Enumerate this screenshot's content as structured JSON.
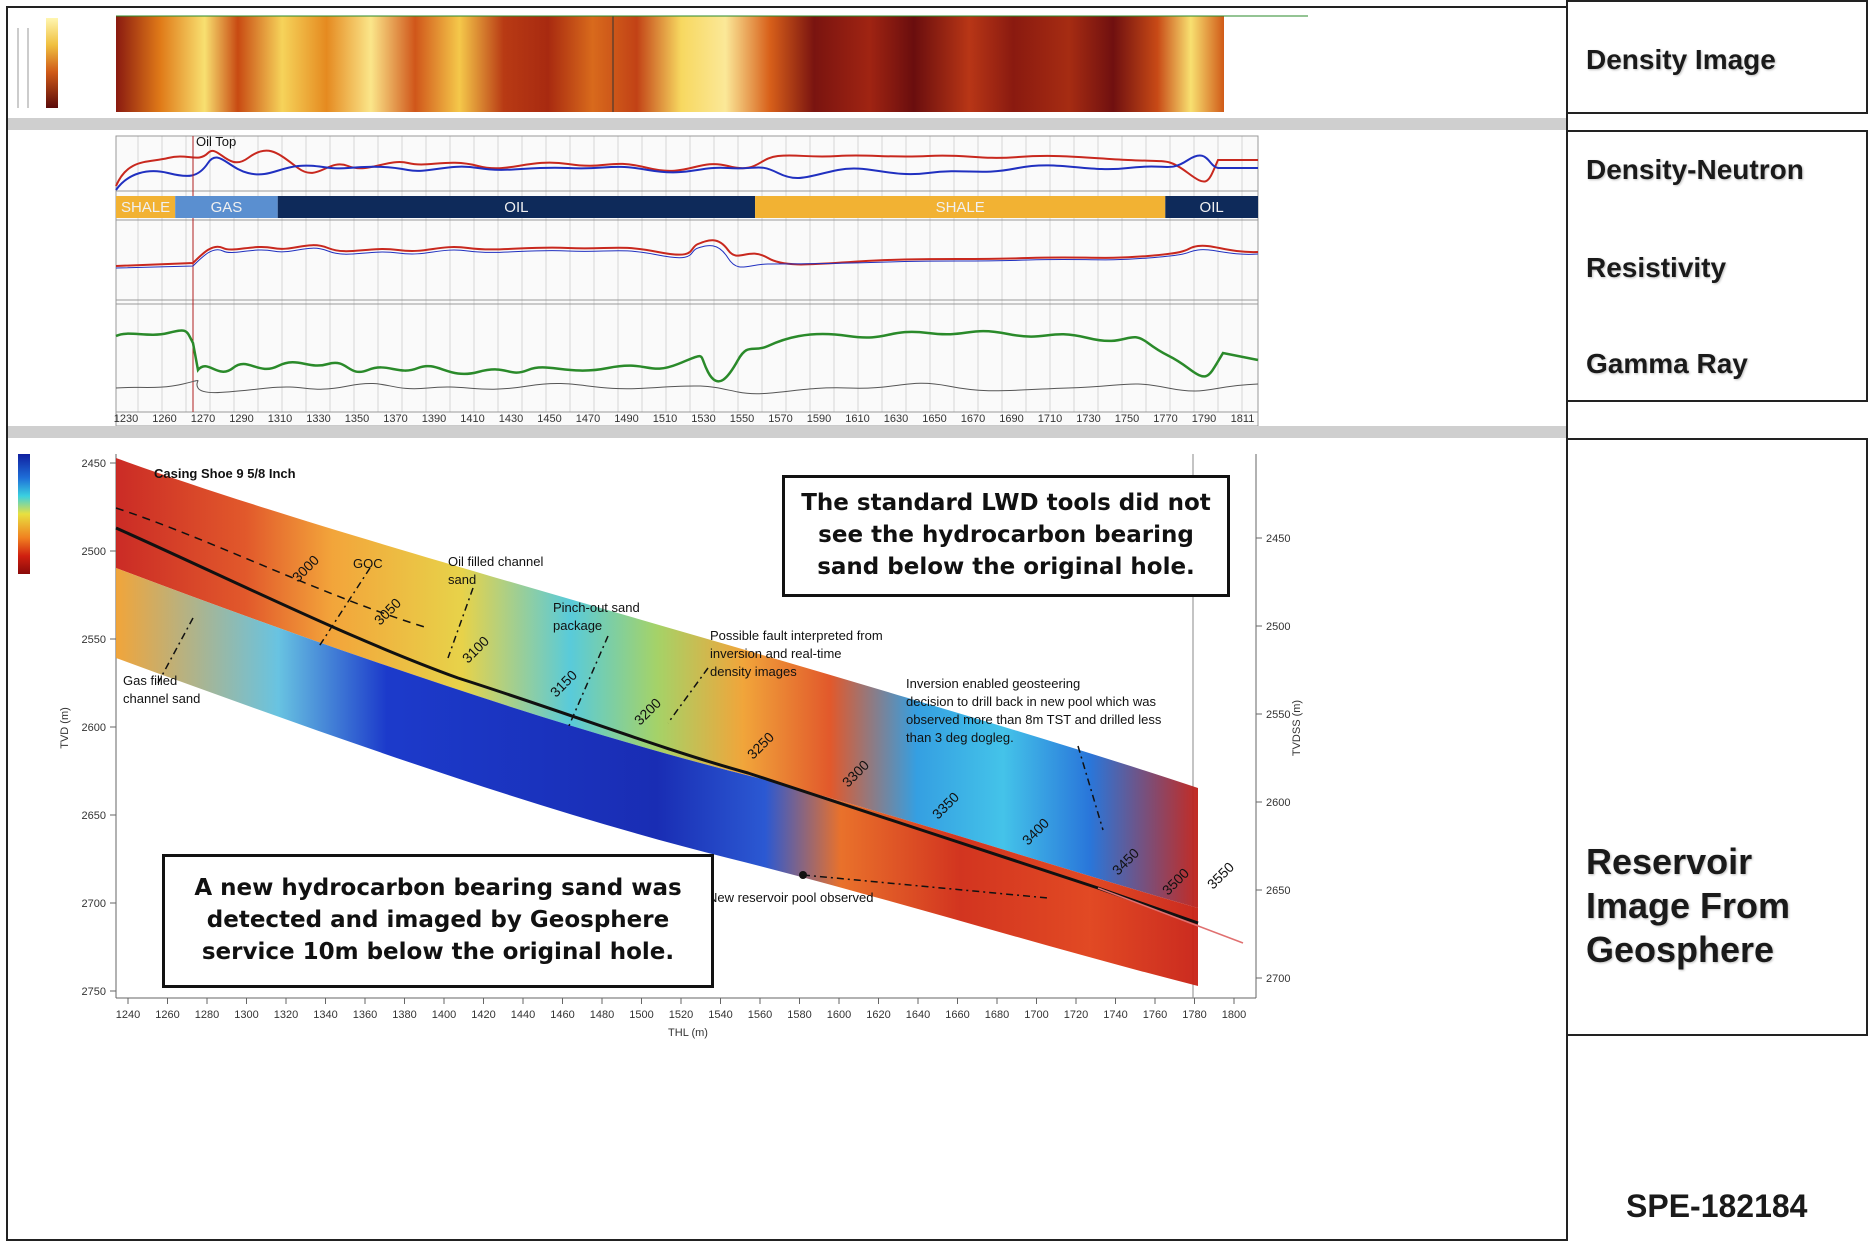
{
  "side_panels": {
    "density_image": "Density Image",
    "density_neutron": "Density-Neutron",
    "resistivity": "Resistivity",
    "gamma_ray": "Gamma Ray",
    "reservoir_image": [
      "Reservoir",
      "Image From",
      "Geosphere"
    ],
    "reference": "SPE-182184"
  },
  "callouts": {
    "top": [
      "The standard LWD tools did not",
      "see the hydrocarbon bearing",
      "sand below the original hole."
    ],
    "bottom": [
      "A new hydrocarbon bearing sand was",
      "detected and imaged by Geosphere",
      "service 10m below the original hole."
    ]
  },
  "zones": [
    {
      "label": "SHALE",
      "from": 1238,
      "to": 1268,
      "color": "#f2b233"
    },
    {
      "label": "GAS",
      "from": 1268,
      "to": 1320,
      "color": "#5a8fd0"
    },
    {
      "label": "OIL",
      "from": 1320,
      "to": 1562,
      "color": "#0e2a5a"
    },
    {
      "label": "SHALE",
      "from": 1562,
      "to": 1770,
      "color": "#f2b233"
    },
    {
      "label": "OIL",
      "from": 1770,
      "to": 1817,
      "color": "#0e2a5a"
    }
  ],
  "annotations": {
    "casing_shoe": "Casing Shoe 9 5/8 Inch",
    "goc": "GOC",
    "oil_sand": [
      "Oil filled channel",
      "sand"
    ],
    "pinch_out": [
      "Pinch-out sand",
      "package"
    ],
    "fault": [
      "Possible fault interpreted from",
      "inversion and real-time",
      "density images"
    ],
    "gas_sand": [
      "Gas filled",
      "channel sand"
    ],
    "inversion": [
      "Inversion enabled geosteering",
      "decision to drill back in new pool which was",
      "observed more than 8m TST and drilled less",
      "than 3 deg dogleg."
    ],
    "new_pool": "New reservoir pool observed"
  },
  "measured_depths": [
    "3000",
    "3050",
    "3100",
    "3150",
    "3200",
    "3250",
    "3300",
    "3350",
    "3400",
    "3450",
    "3500",
    "3550"
  ],
  "tvd_ticks": [
    "2450",
    "2500",
    "2550",
    "2600",
    "2650",
    "2700",
    "2750"
  ],
  "tvdss_ticks": [
    "2450",
    "2500",
    "2550",
    "2600",
    "2650",
    "2700"
  ],
  "thl_ticks": [
    "1240",
    "1260",
    "1280",
    "1300",
    "1320",
    "1340",
    "1360",
    "1380",
    "1400",
    "1420",
    "1440",
    "1460",
    "1480",
    "1500",
    "1520",
    "1540",
    "1560",
    "1580",
    "1600",
    "1620",
    "1640",
    "1660",
    "1680",
    "1700",
    "1720",
    "1740",
    "1760",
    "1780",
    "1800"
  ],
  "axis_labels": {
    "thl": "THL  (m)",
    "tvd": "TVD (m)",
    "tvdss": "TVDSS (m)",
    "oil_top": "Oil Top"
  },
  "colors": {
    "gas_red": "#c8281e",
    "neutron_blue": "#2030c0",
    "gamma_green": "#2a8a2a",
    "track_gray": "#cfcfcf"
  }
}
